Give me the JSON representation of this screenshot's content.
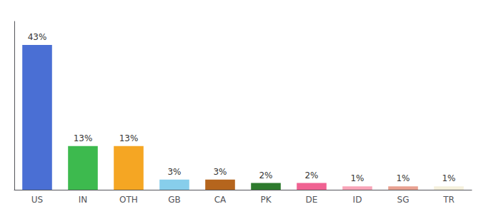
{
  "chart_data": {
    "type": "bar",
    "categories": [
      "US",
      "IN",
      "OTH",
      "GB",
      "CA",
      "PK",
      "DE",
      "ID",
      "SG",
      "TR"
    ],
    "values": [
      43,
      13,
      13,
      3,
      3,
      2,
      2,
      1,
      1,
      1
    ],
    "value_labels": [
      "43%",
      "13%",
      "13%",
      "3%",
      "3%",
      "2%",
      "2%",
      "1%",
      "1%",
      "1%"
    ],
    "colors": [
      "#4a6fd4",
      "#3dba4e",
      "#f5a623",
      "#87ceeb",
      "#b5651d",
      "#2d7a2d",
      "#f06292",
      "#f8a4b8",
      "#e8a090",
      "#f5f0dc"
    ],
    "ylim": [
      0,
      50
    ],
    "data_labels": true,
    "tick_labels": "x",
    "grid": false
  }
}
